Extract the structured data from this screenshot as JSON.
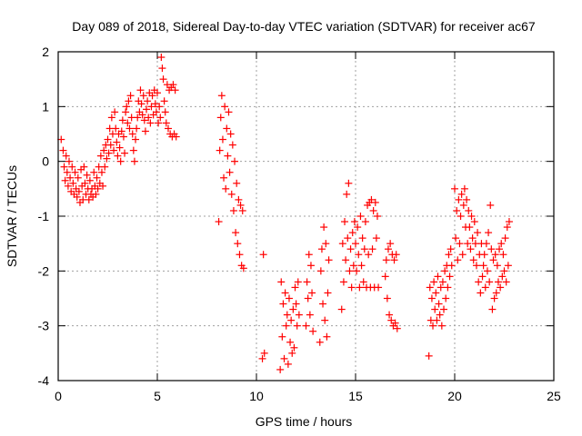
{
  "chart_data": {
    "type": "scatter",
    "title": "Day 089 of 2018, Sidereal Day-to-day VTEC variation (SDTVAR) for receiver ac67",
    "xlabel": "GPS time / hours",
    "ylabel": "SDTVAR / TECUs",
    "xlim": [
      0,
      25
    ],
    "ylim": [
      -4,
      2
    ],
    "xticks": [
      0,
      5,
      10,
      15,
      20,
      25
    ],
    "yticks": [
      -4,
      -3,
      -2,
      -1,
      0,
      1,
      2
    ],
    "xtick_labels": [
      "0",
      "5",
      "10",
      "15",
      "20",
      "25"
    ],
    "ytick_labels": [
      "-4",
      "-3",
      "-2",
      "-1",
      "0",
      "1",
      "2"
    ],
    "grid": true,
    "marker": "+",
    "color": "#ff0000",
    "series": [
      {
        "name": "SDTVAR",
        "points": [
          [
            0.15,
            0.4
          ],
          [
            0.25,
            0.2
          ],
          [
            0.3,
            -0.1
          ],
          [
            0.35,
            -0.35
          ],
          [
            0.4,
            0.1
          ],
          [
            0.45,
            -0.2
          ],
          [
            0.5,
            -0.45
          ],
          [
            0.55,
            0.0
          ],
          [
            0.6,
            -0.3
          ],
          [
            0.65,
            -0.55
          ],
          [
            0.7,
            -0.1
          ],
          [
            0.75,
            -0.4
          ],
          [
            0.8,
            -0.6
          ],
          [
            0.85,
            -0.2
          ],
          [
            0.9,
            -0.5
          ],
          [
            0.95,
            -0.65
          ],
          [
            1.0,
            -0.3
          ],
          [
            1.05,
            -0.55
          ],
          [
            1.1,
            -0.75
          ],
          [
            1.15,
            -0.15
          ],
          [
            1.2,
            -0.45
          ],
          [
            1.25,
            -0.7
          ],
          [
            1.3,
            -0.1
          ],
          [
            1.35,
            -0.4
          ],
          [
            1.4,
            -0.6
          ],
          [
            1.45,
            -0.25
          ],
          [
            1.5,
            -0.5
          ],
          [
            1.55,
            -0.7
          ],
          [
            1.6,
            -0.35
          ],
          [
            1.65,
            -0.6
          ],
          [
            1.7,
            -0.5
          ],
          [
            1.75,
            -0.65
          ],
          [
            1.8,
            -0.2
          ],
          [
            1.85,
            -0.45
          ],
          [
            1.9,
            -0.6
          ],
          [
            1.95,
            -0.3
          ],
          [
            2.0,
            -0.5
          ],
          [
            2.05,
            -0.1
          ],
          [
            2.1,
            -0.4
          ],
          [
            2.15,
            0.1
          ],
          [
            2.2,
            -0.2
          ],
          [
            2.25,
            -0.45
          ],
          [
            2.3,
            0.2
          ],
          [
            2.35,
            -0.1
          ],
          [
            2.4,
            0.3
          ],
          [
            2.45,
            0.05
          ],
          [
            2.5,
            0.4
          ],
          [
            2.55,
            0.15
          ],
          [
            2.6,
            0.6
          ],
          [
            2.65,
            0.3
          ],
          [
            2.7,
            0.8
          ],
          [
            2.75,
            0.5
          ],
          [
            2.8,
            0.2
          ],
          [
            2.85,
            0.9
          ],
          [
            2.9,
            0.6
          ],
          [
            2.95,
            0.35
          ],
          [
            3.0,
            0.1
          ],
          [
            3.05,
            0.5
          ],
          [
            3.1,
            0.25
          ],
          [
            3.15,
            0.0
          ],
          [
            3.2,
            0.55
          ],
          [
            3.25,
            0.75
          ],
          [
            3.3,
            0.45
          ],
          [
            3.35,
            0.15
          ],
          [
            3.4,
            0.9
          ],
          [
            3.45,
            1.0
          ],
          [
            3.5,
            0.7
          ],
          [
            3.55,
            1.1
          ],
          [
            3.6,
            0.6
          ],
          [
            3.65,
            1.2
          ],
          [
            3.7,
            0.8
          ],
          [
            3.75,
            0.5
          ],
          [
            3.8,
            0.2
          ],
          [
            3.85,
            0.0
          ],
          [
            3.9,
            0.4
          ],
          [
            3.95,
            0.6
          ],
          [
            4.0,
            0.8
          ],
          [
            4.05,
            1.1
          ],
          [
            4.1,
            0.9
          ],
          [
            4.15,
            1.3
          ],
          [
            4.2,
            1.05
          ],
          [
            4.25,
            0.85
          ],
          [
            4.3,
            1.2
          ],
          [
            4.35,
            0.75
          ],
          [
            4.4,
            0.55
          ],
          [
            4.45,
            0.95
          ],
          [
            4.5,
            1.1
          ],
          [
            4.55,
            0.8
          ],
          [
            4.6,
            1.25
          ],
          [
            4.65,
            0.7
          ],
          [
            4.7,
            1.0
          ],
          [
            4.75,
            1.2
          ],
          [
            4.8,
            0.85
          ],
          [
            4.85,
            1.3
          ],
          [
            4.9,
            1.05
          ],
          [
            4.95,
            0.9
          ],
          [
            5.0,
            1.25
          ],
          [
            5.05,
            0.7
          ],
          [
            5.1,
            1.0
          ],
          [
            5.15,
            0.8
          ],
          [
            5.2,
            1.9
          ],
          [
            5.25,
            1.7
          ],
          [
            5.3,
            1.5
          ],
          [
            5.35,
            1.1
          ],
          [
            5.4,
            0.9
          ],
          [
            5.45,
            0.7
          ],
          [
            5.5,
            1.4
          ],
          [
            5.55,
            0.6
          ],
          [
            5.6,
            1.3
          ],
          [
            5.65,
            0.5
          ],
          [
            5.7,
            1.35
          ],
          [
            5.75,
            0.45
          ],
          [
            5.8,
            1.4
          ],
          [
            5.85,
            0.5
          ],
          [
            5.9,
            1.3
          ],
          [
            5.95,
            0.45
          ],
          [
            8.1,
            -1.1
          ],
          [
            8.15,
            0.2
          ],
          [
            8.2,
            0.8
          ],
          [
            8.25,
            1.2
          ],
          [
            8.3,
            0.4
          ],
          [
            8.35,
            -0.3
          ],
          [
            8.4,
            1.0
          ],
          [
            8.45,
            -0.5
          ],
          [
            8.5,
            0.6
          ],
          [
            8.55,
            0.1
          ],
          [
            8.6,
            0.9
          ],
          [
            8.65,
            -0.2
          ],
          [
            8.7,
            0.5
          ],
          [
            8.75,
            -0.6
          ],
          [
            8.8,
            0.3
          ],
          [
            8.85,
            -0.9
          ],
          [
            8.9,
            0.0
          ],
          [
            8.95,
            -1.3
          ],
          [
            9.0,
            -0.4
          ],
          [
            9.05,
            -1.5
          ],
          [
            9.1,
            -0.7
          ],
          [
            9.15,
            -1.7
          ],
          [
            9.2,
            -0.8
          ],
          [
            9.25,
            -1.9
          ],
          [
            9.3,
            -0.9
          ],
          [
            9.35,
            -1.95
          ],
          [
            10.3,
            -3.6
          ],
          [
            10.35,
            -1.7
          ],
          [
            10.4,
            -3.5
          ],
          [
            11.2,
            -3.8
          ],
          [
            11.25,
            -2.2
          ],
          [
            11.3,
            -3.2
          ],
          [
            11.35,
            -2.6
          ],
          [
            11.4,
            -3.6
          ],
          [
            11.45,
            -2.4
          ],
          [
            11.5,
            -3.0
          ],
          [
            11.55,
            -2.8
          ],
          [
            11.6,
            -3.7
          ],
          [
            11.65,
            -2.5
          ],
          [
            11.7,
            -3.3
          ],
          [
            11.75,
            -2.9
          ],
          [
            11.8,
            -3.5
          ],
          [
            11.85,
            -2.7
          ],
          [
            11.9,
            -3.4
          ],
          [
            11.95,
            -2.3
          ],
          [
            12.0,
            -2.6
          ],
          [
            12.05,
            -3.0
          ],
          [
            12.1,
            -2.2
          ],
          [
            12.15,
            -2.8
          ],
          [
            12.5,
            -3.0
          ],
          [
            12.55,
            -2.2
          ],
          [
            12.6,
            -2.5
          ],
          [
            12.65,
            -1.7
          ],
          [
            12.7,
            -2.8
          ],
          [
            12.75,
            -1.9
          ],
          [
            12.8,
            -2.4
          ],
          [
            12.85,
            -3.1
          ],
          [
            13.2,
            -3.3
          ],
          [
            13.25,
            -2.0
          ],
          [
            13.3,
            -1.6
          ],
          [
            13.35,
            -2.6
          ],
          [
            13.4,
            -1.2
          ],
          [
            13.45,
            -2.9
          ],
          [
            13.5,
            -1.5
          ],
          [
            13.55,
            -3.2
          ],
          [
            13.6,
            -2.4
          ],
          [
            13.65,
            -1.8
          ],
          [
            14.3,
            -2.7
          ],
          [
            14.35,
            -1.5
          ],
          [
            14.4,
            -2.2
          ],
          [
            14.45,
            -1.1
          ],
          [
            14.5,
            -1.8
          ],
          [
            14.55,
            -0.6
          ],
          [
            14.6,
            -1.4
          ],
          [
            14.65,
            -0.4
          ],
          [
            14.7,
            -2.0
          ],
          [
            14.75,
            -1.6
          ],
          [
            14.8,
            -2.3
          ],
          [
            14.85,
            -1.3
          ],
          [
            14.9,
            -1.9
          ],
          [
            14.95,
            -1.1
          ],
          [
            15.0,
            -1.5
          ],
          [
            15.05,
            -2.0
          ],
          [
            15.1,
            -1.2
          ],
          [
            15.15,
            -1.7
          ],
          [
            15.2,
            -2.3
          ],
          [
            15.25,
            -1.0
          ],
          [
            15.3,
            -1.9
          ],
          [
            15.35,
            -1.4
          ],
          [
            15.4,
            -2.2
          ],
          [
            15.45,
            -1.6
          ],
          [
            15.5,
            -1.1
          ],
          [
            15.55,
            -2.3
          ],
          [
            15.6,
            -0.8
          ],
          [
            15.65,
            -1.7
          ],
          [
            15.7,
            -0.75
          ],
          [
            15.75,
            -2.3
          ],
          [
            15.8,
            -0.7
          ],
          [
            15.85,
            -1.6
          ],
          [
            15.9,
            -0.9
          ],
          [
            15.95,
            -2.3
          ],
          [
            16.0,
            -0.75
          ],
          [
            16.05,
            -1.4
          ],
          [
            16.1,
            -1.0
          ],
          [
            16.15,
            -2.3
          ],
          [
            16.5,
            -2.1
          ],
          [
            16.55,
            -1.8
          ],
          [
            16.6,
            -2.5
          ],
          [
            16.65,
            -1.6
          ],
          [
            16.7,
            -2.8
          ],
          [
            16.75,
            -1.5
          ],
          [
            16.8,
            -2.9
          ],
          [
            16.85,
            -1.7
          ],
          [
            16.9,
            -3.0
          ],
          [
            16.95,
            -1.8
          ],
          [
            17.0,
            -2.95
          ],
          [
            17.05,
            -1.7
          ],
          [
            17.1,
            -3.05
          ],
          [
            18.7,
            -3.55
          ],
          [
            18.75,
            -2.3
          ],
          [
            18.8,
            -2.9
          ],
          [
            18.85,
            -2.5
          ],
          [
            18.9,
            -3.0
          ],
          [
            18.95,
            -2.2
          ],
          [
            19.0,
            -2.7
          ],
          [
            19.05,
            -2.4
          ],
          [
            19.1,
            -2.9
          ],
          [
            19.15,
            -2.1
          ],
          [
            19.2,
            -2.6
          ],
          [
            19.25,
            -2.8
          ],
          [
            19.3,
            -2.3
          ],
          [
            19.35,
            -3.0
          ],
          [
            19.4,
            -2.2
          ],
          [
            19.45,
            -2.7
          ],
          [
            19.5,
            -2.0
          ],
          [
            19.55,
            -2.5
          ],
          [
            19.6,
            -1.9
          ],
          [
            19.65,
            -2.3
          ],
          [
            19.7,
            -1.7
          ],
          [
            19.75,
            -2.1
          ],
          [
            19.8,
            -1.6
          ],
          [
            19.85,
            -1.9
          ],
          [
            20.0,
            -0.5
          ],
          [
            20.05,
            -1.4
          ],
          [
            20.1,
            -0.9
          ],
          [
            20.15,
            -1.8
          ],
          [
            20.2,
            -0.7
          ],
          [
            20.25,
            -1.5
          ],
          [
            20.3,
            -1.0
          ],
          [
            20.35,
            -0.6
          ],
          [
            20.4,
            -1.7
          ],
          [
            20.45,
            -0.8
          ],
          [
            20.5,
            -0.5
          ],
          [
            20.55,
            -1.2
          ],
          [
            20.6,
            -0.7
          ],
          [
            20.65,
            -1.5
          ],
          [
            20.7,
            -0.9
          ],
          [
            20.75,
            -1.2
          ],
          [
            20.8,
            -1.6
          ],
          [
            20.85,
            -1.0
          ],
          [
            20.9,
            -1.4
          ],
          [
            20.95,
            -1.8
          ],
          [
            21.0,
            -1.1
          ],
          [
            21.05,
            -1.5
          ],
          [
            21.1,
            -1.9
          ],
          [
            21.15,
            -1.3
          ],
          [
            21.2,
            -2.2
          ],
          [
            21.25,
            -1.7
          ],
          [
            21.3,
            -2.4
          ],
          [
            21.35,
            -1.5
          ],
          [
            21.4,
            -2.1
          ],
          [
            21.45,
            -1.9
          ],
          [
            21.5,
            -1.7
          ],
          [
            21.55,
            -2.3
          ],
          [
            21.6,
            -1.5
          ],
          [
            21.65,
            -2.0
          ],
          [
            21.7,
            -1.3
          ],
          [
            21.75,
            -2.2
          ],
          [
            21.8,
            -0.8
          ],
          [
            21.85,
            -1.6
          ],
          [
            21.9,
            -2.7
          ],
          [
            21.95,
            -1.8
          ],
          [
            22.0,
            -2.5
          ],
          [
            22.05,
            -1.7
          ],
          [
            22.1,
            -2.4
          ],
          [
            22.15,
            -1.9
          ],
          [
            22.2,
            -2.2
          ],
          [
            22.25,
            -1.6
          ],
          [
            22.3,
            -2.3
          ],
          [
            22.35,
            -1.5
          ],
          [
            22.4,
            -2.1
          ],
          [
            22.45,
            -1.7
          ],
          [
            22.5,
            -2.0
          ],
          [
            22.55,
            -1.4
          ],
          [
            22.6,
            -2.2
          ],
          [
            22.65,
            -1.2
          ],
          [
            22.7,
            -1.9
          ],
          [
            22.75,
            -1.1
          ]
        ]
      }
    ]
  }
}
